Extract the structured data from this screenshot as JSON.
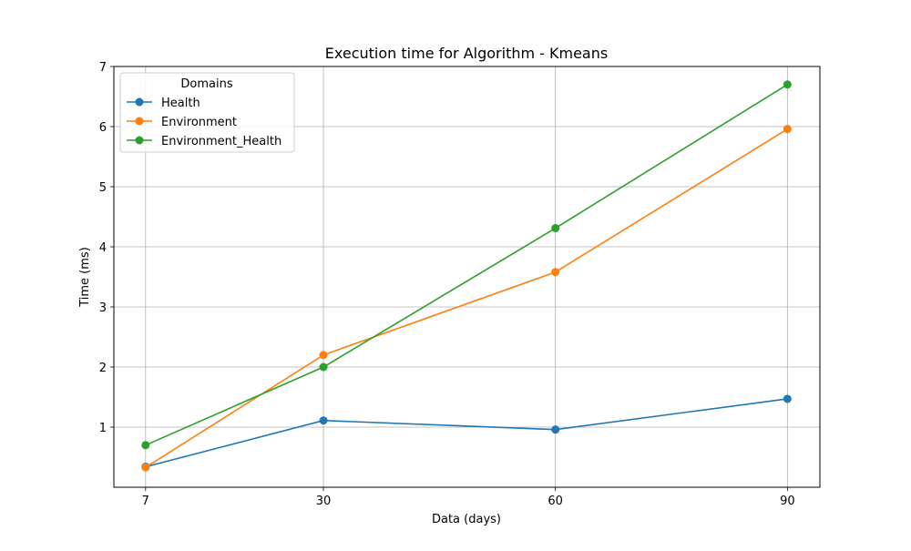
{
  "chart_data": {
    "type": "line",
    "title": "Execution time for Algorithm - Kmeans",
    "xlabel": "Data (days)",
    "ylabel": "Time (ms)",
    "x": [
      7,
      30,
      60,
      90
    ],
    "xticks": [
      "7",
      "30",
      "60",
      "90"
    ],
    "yticks": [
      "1",
      "2",
      "3",
      "4",
      "5",
      "6",
      "7"
    ],
    "xlim": [
      2.9,
      94.2
    ],
    "ylim": [
      0,
      7
    ],
    "grid": true,
    "legend": {
      "title": "Domains",
      "placement": "upper-left"
    },
    "series": [
      {
        "name": "Health",
        "color": "#1f77b4",
        "values": [
          0.34,
          1.11,
          0.96,
          1.47
        ]
      },
      {
        "name": "Environment",
        "color": "#ff7f0e",
        "values": [
          0.33,
          2.2,
          3.58,
          5.96
        ]
      },
      {
        "name": "Environment_Health",
        "color": "#2ca02c",
        "values": [
          0.7,
          2.0,
          4.31,
          6.7
        ]
      }
    ]
  }
}
